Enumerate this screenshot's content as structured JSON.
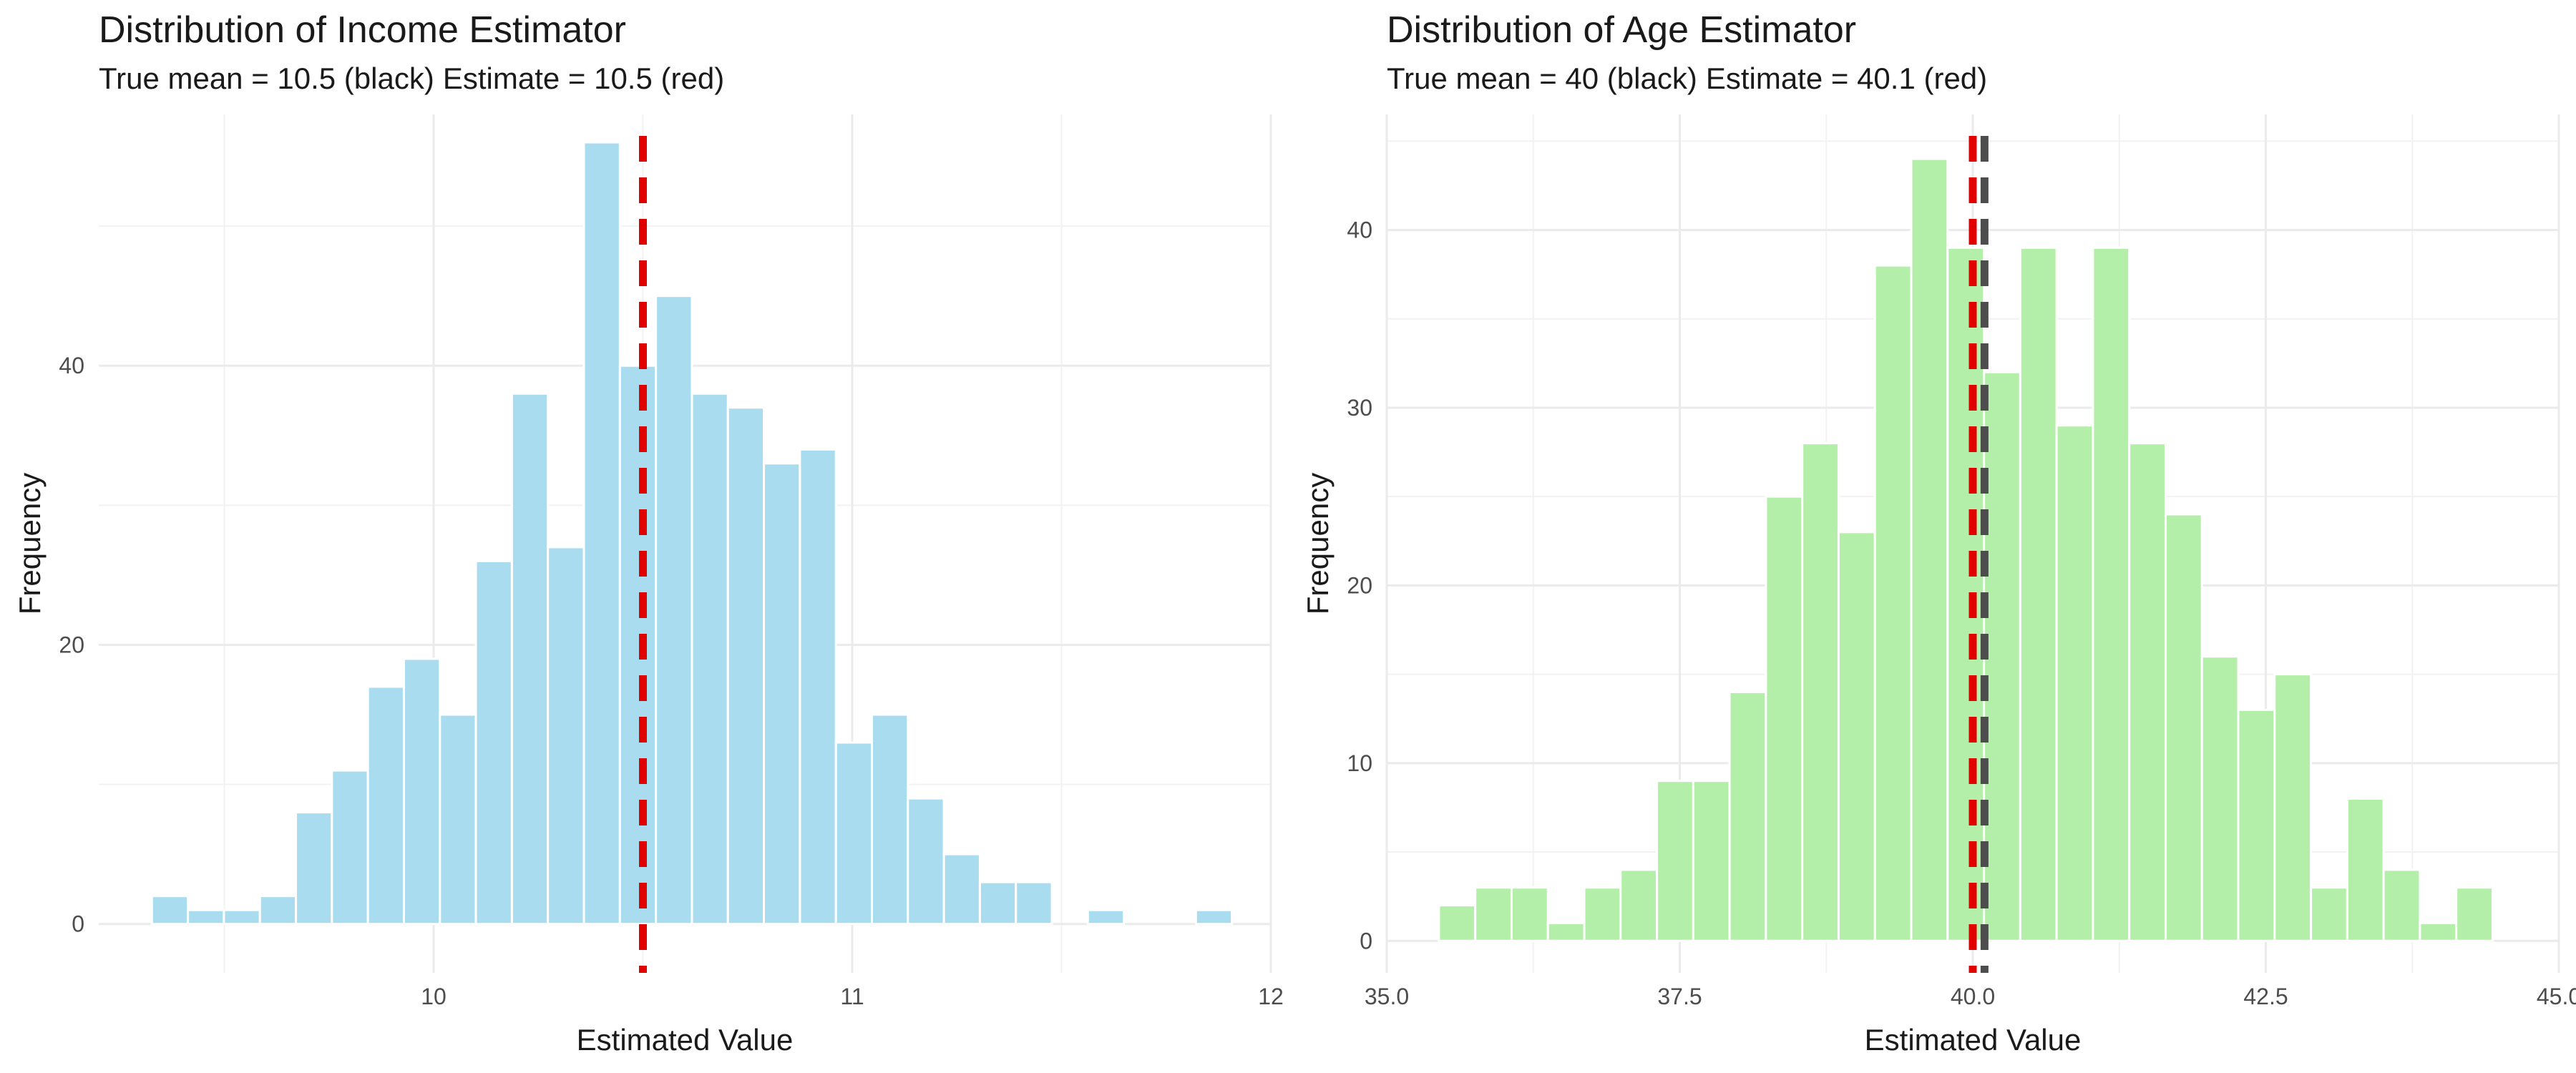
{
  "chart_data": [
    {
      "type": "bar",
      "title": "Distribution of Income Estimator",
      "subtitle_parts": [
        "True mean = 10.5 (black)",
        "Estimate = 10.5 (red)"
      ],
      "xlabel": "Estimated Value",
      "ylabel": "Frequency",
      "xlim": [
        9.2,
        12.0
      ],
      "ylim": [
        -3.5,
        58
      ],
      "x_ticks": [
        10,
        11,
        12
      ],
      "x_tick_labels": [
        "10",
        "11",
        "12"
      ],
      "y_ticks": [
        0,
        20,
        40
      ],
      "y_tick_labels": [
        "0",
        "20",
        "40"
      ],
      "bin_width": 0.086,
      "bin_centers": [
        9.37,
        9.456,
        9.542,
        9.628,
        9.714,
        9.8,
        9.886,
        9.972,
        10.058,
        10.144,
        10.23,
        10.316,
        10.402,
        10.488,
        10.574,
        10.66,
        10.746,
        10.832,
        10.918,
        11.004,
        11.09,
        11.176,
        11.262,
        11.348,
        11.434,
        11.52,
        11.606,
        11.692,
        11.778,
        11.864
      ],
      "values": [
        2,
        1,
        1,
        2,
        8,
        11,
        17,
        19,
        15,
        26,
        38,
        27,
        56,
        40,
        45,
        38,
        37,
        33,
        34,
        13,
        15,
        9,
        5,
        3,
        3,
        0,
        1,
        0,
        0,
        1
      ],
      "fill_color": "#A9DCEF",
      "mean_lines": [
        {
          "label": "True mean",
          "value": 10.5,
          "color": "#4d4d4d"
        },
        {
          "label": "Estimate",
          "value": 10.5,
          "color": "#E00000"
        }
      ]
    },
    {
      "type": "bar",
      "title": "Distribution of Age Estimator",
      "subtitle_parts": [
        "True mean = 40 (black)",
        "Estimate = 40.1 (red)"
      ],
      "xlabel": "Estimated Value",
      "ylabel": "Frequency",
      "xlim": [
        35.0,
        45.0
      ],
      "ylim": [
        -1.8,
        46.5
      ],
      "x_ticks": [
        35,
        37.5,
        40,
        42.5,
        45
      ],
      "x_tick_labels": [
        "35.0",
        "37.5",
        "40.0",
        "42.5",
        "45.0"
      ],
      "y_ticks": [
        0,
        10,
        20,
        30,
        40
      ],
      "y_tick_labels": [
        "0",
        "10",
        "20",
        "30",
        "40"
      ],
      "bin_width": 0.31,
      "bin_centers": [
        35.6,
        35.91,
        36.22,
        36.53,
        36.84,
        37.15,
        37.46,
        37.77,
        38.08,
        38.39,
        38.7,
        39.01,
        39.32,
        39.63,
        39.94,
        40.25,
        40.56,
        40.87,
        41.18,
        41.49,
        41.8,
        42.11,
        42.42,
        42.73,
        43.04,
        43.35,
        43.66,
        43.97,
        44.28
      ],
      "values": [
        2,
        3,
        3,
        1,
        3,
        4,
        9,
        9,
        14,
        25,
        28,
        23,
        38,
        44,
        39,
        32,
        39,
        29,
        39,
        28,
        24,
        16,
        13,
        15,
        3,
        8,
        4,
        1,
        3
      ],
      "fill_color": "#B3EFA8",
      "mean_lines": [
        {
          "label": "True mean",
          "value": 40.0,
          "color": "#E00000"
        },
        {
          "label": "Estimate",
          "value": 40.1,
          "color": "#4d4d4d"
        }
      ]
    }
  ]
}
